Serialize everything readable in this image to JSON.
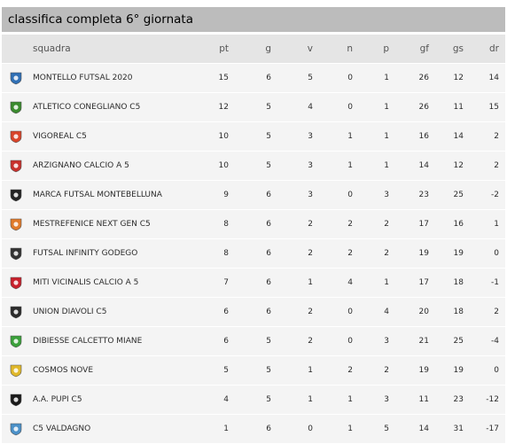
{
  "title": "classifica completa 6° giornata",
  "columns": {
    "team": "squadra",
    "pt": "pt",
    "g": "g",
    "v": "v",
    "n": "n",
    "p": "p",
    "gf": "gf",
    "gs": "gs",
    "dr": "dr"
  },
  "rows": [
    {
      "team": "MONTELLO FUTSAL 2020",
      "logo": "montello-logo",
      "color": "#2f6fb5",
      "pt": "15",
      "g": "6",
      "v": "5",
      "n": "0",
      "p": "1",
      "gf": "26",
      "gs": "12",
      "dr": "14"
    },
    {
      "team": "ATLETICO CONEGLIANO C5",
      "logo": "conegliano-logo",
      "color": "#3a8a2e",
      "pt": "12",
      "g": "5",
      "v": "4",
      "n": "0",
      "p": "1",
      "gf": "26",
      "gs": "11",
      "dr": "15"
    },
    {
      "team": "VIGOREAL C5",
      "logo": "vigoreal-logo",
      "color": "#d8442a",
      "pt": "10",
      "g": "5",
      "v": "3",
      "n": "1",
      "p": "1",
      "gf": "16",
      "gs": "14",
      "dr": "2"
    },
    {
      "team": "ARZIGNANO CALCIO A 5",
      "logo": "arzignano-logo",
      "color": "#c8302c",
      "pt": "10",
      "g": "5",
      "v": "3",
      "n": "1",
      "p": "1",
      "gf": "14",
      "gs": "12",
      "dr": "2"
    },
    {
      "team": "MARCA FUTSAL MONTEBELLUNA",
      "logo": "marca-logo",
      "color": "#222222",
      "pt": "9",
      "g": "6",
      "v": "3",
      "n": "0",
      "p": "3",
      "gf": "23",
      "gs": "25",
      "dr": "-2"
    },
    {
      "team": "MESTREFENICE NEXT GEN C5",
      "logo": "mestrefenice-logo",
      "color": "#e07a2a",
      "pt": "8",
      "g": "6",
      "v": "2",
      "n": "2",
      "p": "2",
      "gf": "17",
      "gs": "16",
      "dr": "1"
    },
    {
      "team": "FUTSAL INFINITY GODEGO",
      "logo": "infinity-logo",
      "color": "#333333",
      "pt": "8",
      "g": "6",
      "v": "2",
      "n": "2",
      "p": "2",
      "gf": "19",
      "gs": "19",
      "dr": "0"
    },
    {
      "team": "MITI VICINALIS CALCIO A 5",
      "logo": "miti-logo",
      "color": "#c8202c",
      "pt": "7",
      "g": "6",
      "v": "1",
      "n": "4",
      "p": "1",
      "gf": "17",
      "gs": "18",
      "dr": "-1"
    },
    {
      "team": "UNION DIAVOLI C5",
      "logo": "diavoli-logo",
      "color": "#2a2a2a",
      "pt": "6",
      "g": "6",
      "v": "2",
      "n": "0",
      "p": "4",
      "gf": "20",
      "gs": "18",
      "dr": "2"
    },
    {
      "team": "DIBIESSE CALCETTO MIANE",
      "logo": "dibiesse-logo",
      "color": "#3aa03a",
      "pt": "6",
      "g": "5",
      "v": "2",
      "n": "0",
      "p": "3",
      "gf": "21",
      "gs": "25",
      "dr": "-4"
    },
    {
      "team": "COSMOS NOVE",
      "logo": "cosmos-logo",
      "color": "#e0b82a",
      "pt": "5",
      "g": "5",
      "v": "1",
      "n": "2",
      "p": "2",
      "gf": "19",
      "gs": "19",
      "dr": "0"
    },
    {
      "team": "A.A. PUPI C5",
      "logo": "pupi-logo",
      "color": "#1a1a1a",
      "pt": "4",
      "g": "5",
      "v": "1",
      "n": "1",
      "p": "3",
      "gf": "11",
      "gs": "23",
      "dr": "-12"
    },
    {
      "team": "C5 VALDAGNO",
      "logo": "valdagno-logo",
      "color": "#4a90c8",
      "pt": "1",
      "g": "6",
      "v": "0",
      "n": "1",
      "p": "5",
      "gf": "14",
      "gs": "31",
      "dr": "-17"
    }
  ]
}
